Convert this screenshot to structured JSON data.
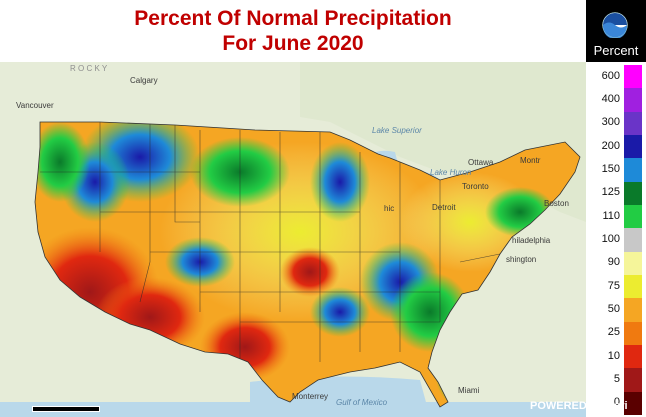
{
  "header": {
    "title_line1": "Percent Of Normal Precipitation",
    "title_line2": "For June 2020",
    "logo_text": "NOAA"
  },
  "legend": {
    "title": "Percent",
    "categories": [
      {
        "label": "600",
        "color": "#ff00ff"
      },
      {
        "label": "400",
        "color": "#a020e0"
      },
      {
        "label": "300",
        "color": "#6a34c8"
      },
      {
        "label": "200",
        "color": "#1a1aa8"
      },
      {
        "label": "150",
        "color": "#1e8ad8"
      },
      {
        "label": "125",
        "color": "#0a7a2a"
      },
      {
        "label": "110",
        "color": "#22cc44"
      },
      {
        "label": "100",
        "color": "#c8c8c8"
      },
      {
        "label": "90",
        "color": "#f5f59a"
      },
      {
        "label": "75",
        "color": "#ecec30"
      },
      {
        "label": "50",
        "color": "#f5a623"
      },
      {
        "label": "25",
        "color": "#f07a10"
      },
      {
        "label": "10",
        "color": "#e02810"
      },
      {
        "label": "5",
        "color": "#a01818"
      },
      {
        "label": "0",
        "color": "#5a0000"
      }
    ]
  },
  "map": {
    "places": [
      {
        "id": "calgary",
        "text": "Calgary",
        "style": ""
      },
      {
        "id": "vancouver",
        "text": "Vancouver",
        "style": ""
      },
      {
        "id": "lake-superior",
        "text": "Lake Superior",
        "style": "water"
      },
      {
        "id": "lake-huron",
        "text": "Lake Huron",
        "style": "water"
      },
      {
        "id": "ottawa",
        "text": "Ottawa",
        "style": ""
      },
      {
        "id": "montreal",
        "text": "Montr",
        "style": ""
      },
      {
        "id": "toronto",
        "text": "Toronto",
        "style": ""
      },
      {
        "id": "detroit",
        "text": "Detroit",
        "style": ""
      },
      {
        "id": "chicago",
        "text": "hic",
        "style": ""
      },
      {
        "id": "boston",
        "text": "Boston",
        "style": ""
      },
      {
        "id": "philadelphia",
        "text": "hiladelphia",
        "style": ""
      },
      {
        "id": "washington",
        "text": "shington",
        "style": ""
      },
      {
        "id": "miami",
        "text": "Miami",
        "style": ""
      },
      {
        "id": "monterrey",
        "text": "Monterrey",
        "style": ""
      },
      {
        "id": "gulf",
        "text": "Gulf of Mexico",
        "style": "water"
      },
      {
        "id": "rocky",
        "text": "R O C K Y",
        "style": "dim"
      }
    ],
    "attribution": "POWERED BY esri"
  }
}
